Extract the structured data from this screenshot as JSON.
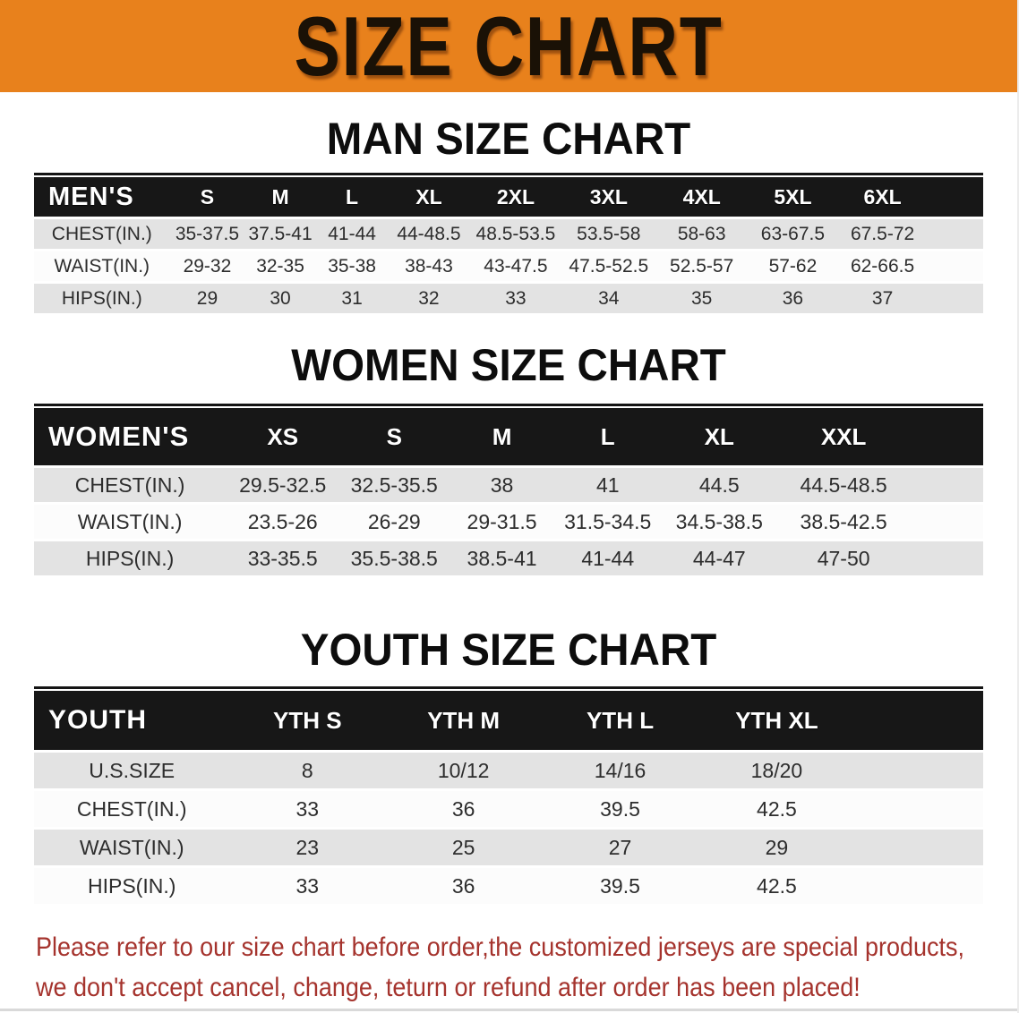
{
  "banner": {
    "title": "SIZE CHART"
  },
  "colors": {
    "banner_bg": "#E8811C",
    "header_bar": "#171717",
    "row_gray": "#E3E3E3",
    "row_white": "#FCFCFC",
    "footer_text": "#A5332D"
  },
  "sections": [
    {
      "heading": "MAN SIZE CHART",
      "table": {
        "label": "MEN'S",
        "columns": [
          "S",
          "M",
          "L",
          "XL",
          "2XL",
          "3XL",
          "4XL",
          "5XL",
          "6XL"
        ],
        "rows": [
          {
            "label": "CHEST(IN.)",
            "values": [
              "35-37.5",
              "37.5-41",
              "41-44",
              "44-48.5",
              "48.5-53.5",
              "53.5-58",
              "58-63",
              "63-67.5",
              "67.5-72"
            ]
          },
          {
            "label": "WAIST(IN.)",
            "values": [
              "29-32",
              "32-35",
              "35-38",
              "38-43",
              "43-47.5",
              "47.5-52.5",
              "52.5-57",
              "57-62",
              "62-66.5"
            ]
          },
          {
            "label": "HIPS(IN.)",
            "values": [
              "29",
              "30",
              "31",
              "32",
              "33",
              "34",
              "35",
              "36",
              "37"
            ]
          }
        ]
      }
    },
    {
      "heading": "WOMEN SIZE CHART",
      "table": {
        "label": "WOMEN'S",
        "columns": [
          "XS",
          "S",
          "M",
          "L",
          "XL",
          "XXL"
        ],
        "rows": [
          {
            "label": "CHEST(IN.)",
            "values": [
              "29.5-32.5",
              "32.5-35.5",
              "38",
              "41",
              "44.5",
              "44.5-48.5"
            ]
          },
          {
            "label": "WAIST(IN.)",
            "values": [
              "23.5-26",
              "26-29",
              "29-31.5",
              "31.5-34.5",
              "34.5-38.5",
              "38.5-42.5"
            ]
          },
          {
            "label": "HIPS(IN.)",
            "values": [
              "33-35.5",
              "35.5-38.5",
              "38.5-41",
              "41-44",
              "44-47",
              "47-50"
            ]
          }
        ]
      }
    },
    {
      "heading": "YOUTH SIZE CHART",
      "table": {
        "label": "YOUTH",
        "columns": [
          "YTH S",
          "YTH M",
          "YTH L",
          "YTH XL"
        ],
        "rows": [
          {
            "label": "U.S.SIZE",
            "values": [
              "8",
              "10/12",
              "14/16",
              "18/20"
            ]
          },
          {
            "label": "CHEST(IN.)",
            "values": [
              "33",
              "36",
              "39.5",
              "42.5"
            ]
          },
          {
            "label": "WAIST(IN.)",
            "values": [
              "23",
              "25",
              "27",
              "29"
            ]
          },
          {
            "label": "HIPS(IN.)",
            "values": [
              "33",
              "36",
              "39.5",
              "42.5"
            ]
          }
        ]
      }
    }
  ],
  "footer": {
    "line1": "Please refer to our size chart before order,the customized jerseys are special products,",
    "line2": "we don't accept cancel, change, teturn or refund after order has been placed!"
  }
}
